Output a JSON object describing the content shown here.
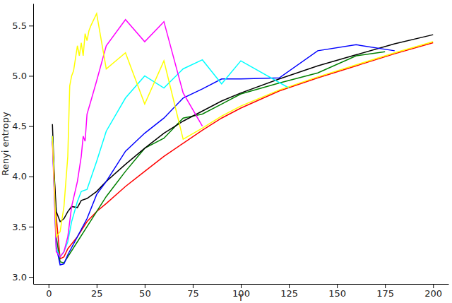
{
  "chart_data": {
    "type": "line",
    "x_label": "T",
    "y_label": "Renyi entropy",
    "xlim": [
      -8,
      208
    ],
    "ylim": [
      2.93,
      5.72
    ],
    "xticks": [
      0,
      25,
      50,
      75,
      100,
      125,
      150,
      175,
      200
    ],
    "yticks": [
      {
        "value": 3,
        "label": "3.0"
      },
      3.5,
      {
        "value": 4,
        "label": "4.0"
      },
      4.5,
      {
        "value": 5,
        "label": "5.0"
      },
      5.5
    ],
    "grid": false,
    "series": [
      {
        "color": "#ff0000",
        "x": [
          2,
          4,
          6,
          8,
          10,
          15,
          20,
          25,
          30,
          40,
          50,
          60,
          70,
          80,
          90,
          100,
          120,
          140,
          160,
          180,
          200
        ],
        "values": [
          4.35,
          3.6,
          3.18,
          3.2,
          3.28,
          3.4,
          3.55,
          3.65,
          3.73,
          3.9,
          4.05,
          4.2,
          4.33,
          4.46,
          4.58,
          4.68,
          4.85,
          4.98,
          5.1,
          5.22,
          5.33
        ]
      },
      {
        "color": "#008000",
        "x": [
          2,
          4,
          6,
          8,
          10,
          15,
          20,
          25,
          30,
          40,
          50,
          60,
          70,
          80,
          90,
          100,
          120,
          140,
          160,
          175
        ],
        "values": [
          4.4,
          3.4,
          3.15,
          3.14,
          3.2,
          3.35,
          3.5,
          3.65,
          3.8,
          4.05,
          4.28,
          4.38,
          4.58,
          4.62,
          4.72,
          4.82,
          4.93,
          5.03,
          5.2,
          5.24
        ]
      },
      {
        "color": "#000000",
        "x": [
          2,
          3,
          4,
          6,
          8,
          10,
          12,
          15,
          17,
          20,
          25,
          30,
          40,
          50,
          60,
          70,
          80,
          90,
          100,
          120,
          140,
          160,
          180,
          200
        ],
        "values": [
          4.52,
          4.0,
          3.65,
          3.55,
          3.58,
          3.65,
          3.7,
          3.69,
          3.76,
          3.78,
          3.85,
          3.95,
          4.12,
          4.28,
          4.43,
          4.55,
          4.65,
          4.75,
          4.83,
          4.97,
          5.1,
          5.21,
          5.32,
          5.41
        ]
      },
      {
        "color": "#0000ff",
        "x": [
          2,
          4,
          6,
          8,
          10,
          15,
          20,
          25,
          30,
          40,
          50,
          60,
          70,
          80,
          90,
          100,
          120,
          140,
          160,
          180
        ],
        "values": [
          4.4,
          3.3,
          3.12,
          3.13,
          3.22,
          3.4,
          3.58,
          3.82,
          3.95,
          4.25,
          4.43,
          4.58,
          4.78,
          4.87,
          4.97,
          4.97,
          4.98,
          5.25,
          5.31,
          5.25
        ]
      },
      {
        "color": "#00ffff",
        "x": [
          2,
          4,
          6,
          8,
          10,
          12,
          15,
          17,
          20,
          25,
          30,
          40,
          50,
          60,
          70,
          80,
          90,
          100,
          125
        ],
        "values": [
          4.4,
          3.28,
          3.2,
          3.25,
          3.35,
          3.55,
          3.75,
          3.85,
          3.87,
          4.15,
          4.45,
          4.78,
          5.0,
          4.88,
          5.07,
          5.16,
          4.92,
          5.15,
          4.88
        ]
      },
      {
        "color": "#ff00ff",
        "x": [
          2,
          4,
          6,
          8,
          10,
          12,
          15,
          17,
          18,
          19,
          20,
          22,
          25,
          30,
          40,
          50,
          60,
          70,
          80
        ],
        "values": [
          4.35,
          3.25,
          3.2,
          3.25,
          3.4,
          3.7,
          3.95,
          4.2,
          4.4,
          4.35,
          4.62,
          4.75,
          4.95,
          5.3,
          5.56,
          5.34,
          5.54,
          4.83,
          4.5
        ]
      },
      {
        "color": "#ffff00",
        "x": [
          2,
          4,
          6,
          8,
          10,
          11,
          12,
          13,
          15,
          16,
          17,
          18,
          19,
          20,
          21,
          22,
          25,
          30,
          40,
          50,
          60,
          70,
          80,
          90,
          100,
          120,
          140,
          160,
          180,
          200
        ],
        "values": [
          4.4,
          3.4,
          3.45,
          3.7,
          4.2,
          4.9,
          5.0,
          5.05,
          5.3,
          5.2,
          5.33,
          5.2,
          5.42,
          5.35,
          5.45,
          5.5,
          5.62,
          5.07,
          5.23,
          4.72,
          5.15,
          4.37,
          4.48,
          4.6,
          4.7,
          4.86,
          4.99,
          5.11,
          5.23,
          5.34
        ]
      }
    ]
  }
}
